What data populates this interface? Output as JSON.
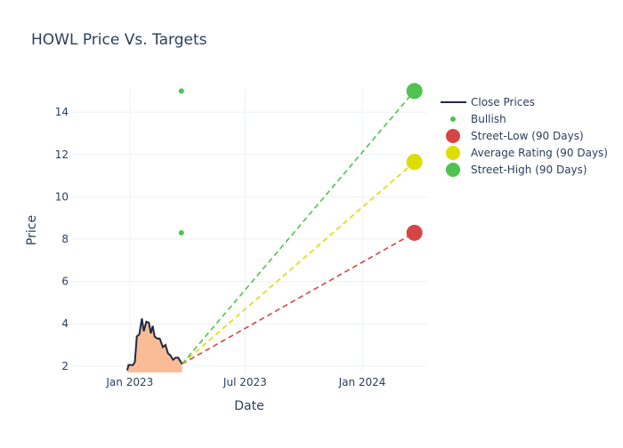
{
  "chart_data": {
    "type": "line",
    "title": "HOWL Price Vs. Targets",
    "xlabel": "Date",
    "ylabel": "Price",
    "xlim": [
      "2022-10-01",
      "2024-04-12"
    ],
    "ylim": [
      1.7,
      15.1
    ],
    "x_ticks": [
      {
        "date": "2023-01-01",
        "label": "Jan 2023"
      },
      {
        "date": "2023-07-01",
        "label": "Jul 2023"
      },
      {
        "date": "2024-01-01",
        "label": "Jan 2024"
      }
    ],
    "y_ticks": [
      2,
      4,
      6,
      8,
      10,
      12,
      14
    ],
    "grid": true,
    "legend_position": "right",
    "series": [
      {
        "name": "Close Prices",
        "kind": "line-filled",
        "color": "#1f2a44",
        "fill": "#f9bc94",
        "x": [
          "2022-12-28",
          "2022-12-30",
          "2023-01-06",
          "2023-01-09",
          "2023-01-12",
          "2023-01-16",
          "2023-01-20",
          "2023-01-23",
          "2023-01-27",
          "2023-01-31",
          "2023-02-03",
          "2023-02-06",
          "2023-02-09",
          "2023-02-13",
          "2023-02-17",
          "2023-02-22",
          "2023-02-26",
          "2023-03-02",
          "2023-03-06",
          "2023-03-10",
          "2023-03-14",
          "2023-03-18",
          "2023-03-22",
          "2023-03-24"
        ],
        "y": [
          1.8,
          2.05,
          2.05,
          2.2,
          3.4,
          3.5,
          4.25,
          3.65,
          4.1,
          4.05,
          3.55,
          3.9,
          3.4,
          3.3,
          3.3,
          2.9,
          3.0,
          2.6,
          2.5,
          2.3,
          2.4,
          2.4,
          2.2,
          2.1
        ]
      },
      {
        "name": "Bullish",
        "kind": "markers",
        "color": "#4fc24f",
        "x": [
          "2023-03-23",
          "2023-03-23"
        ],
        "y": [
          15,
          8.3
        ]
      },
      {
        "name": "Street-Low (90 Days)",
        "kind": "target",
        "color": "#d64545",
        "x": "2024-03-23",
        "y": 8.3
      },
      {
        "name": "Average Rating (90 Days)",
        "kind": "target",
        "color": "#dddd00",
        "x": "2024-03-23",
        "y": 11.65
      },
      {
        "name": "Street-High (90 Days)",
        "kind": "target",
        "color": "#4fc24f",
        "x": "2024-03-23",
        "y": 15
      }
    ],
    "target_lines_from": {
      "x": "2023-03-24",
      "y": 2.1
    }
  }
}
